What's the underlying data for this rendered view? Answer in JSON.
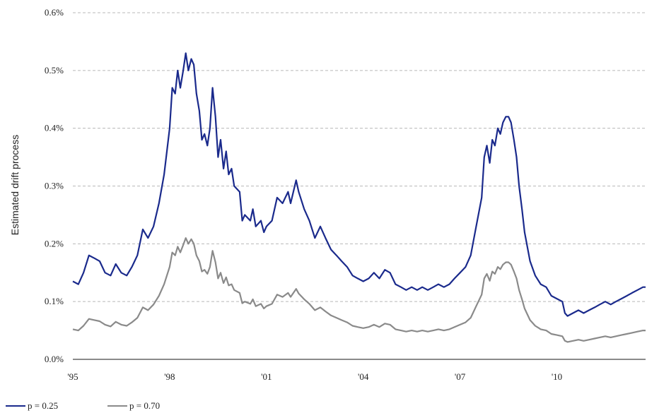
{
  "chart_data": {
    "type": "line",
    "title": "",
    "ylabel": "Estimated drift process",
    "xlabel": "",
    "xlim": [
      1995.0,
      2012.75
    ],
    "ylim": [
      0,
      0.6
    ],
    "y_unit": "%",
    "grid": true,
    "legend_position": "bottom-left",
    "x_ticks": [
      {
        "value": 1995,
        "label": "'95"
      },
      {
        "value": 1998,
        "label": "'98"
      },
      {
        "value": 2001,
        "label": "'01"
      },
      {
        "value": 2004,
        "label": "'04"
      },
      {
        "value": 2007,
        "label": "'07"
      },
      {
        "value": 2010,
        "label": "'10"
      }
    ],
    "y_ticks": [
      {
        "value": 0.0,
        "label": "0.0%"
      },
      {
        "value": 0.1,
        "label": "0.1%"
      },
      {
        "value": 0.2,
        "label": "0.2%"
      },
      {
        "value": 0.3,
        "label": "0.3%"
      },
      {
        "value": 0.4,
        "label": "0.4%"
      },
      {
        "value": 0.5,
        "label": "0.5%"
      },
      {
        "value": 0.6,
        "label": "0.6%"
      }
    ],
    "series": [
      {
        "name": "p = 0.25",
        "color": "#1a2a8c",
        "points": [
          [
            1995.0,
            0.135
          ],
          [
            1995.17,
            0.13
          ],
          [
            1995.33,
            0.15
          ],
          [
            1995.5,
            0.18
          ],
          [
            1995.67,
            0.175
          ],
          [
            1995.83,
            0.17
          ],
          [
            1996.0,
            0.15
          ],
          [
            1996.17,
            0.145
          ],
          [
            1996.33,
            0.165
          ],
          [
            1996.5,
            0.15
          ],
          [
            1996.67,
            0.145
          ],
          [
            1996.83,
            0.16
          ],
          [
            1997.0,
            0.18
          ],
          [
            1997.17,
            0.225
          ],
          [
            1997.33,
            0.21
          ],
          [
            1997.5,
            0.23
          ],
          [
            1997.67,
            0.27
          ],
          [
            1997.83,
            0.32
          ],
          [
            1998.0,
            0.4
          ],
          [
            1998.08,
            0.47
          ],
          [
            1998.17,
            0.46
          ],
          [
            1998.25,
            0.5
          ],
          [
            1998.33,
            0.47
          ],
          [
            1998.42,
            0.5
          ],
          [
            1998.5,
            0.53
          ],
          [
            1998.58,
            0.5
          ],
          [
            1998.67,
            0.52
          ],
          [
            1998.75,
            0.51
          ],
          [
            1998.83,
            0.46
          ],
          [
            1998.92,
            0.43
          ],
          [
            1999.0,
            0.38
          ],
          [
            1999.08,
            0.39
          ],
          [
            1999.17,
            0.37
          ],
          [
            1999.25,
            0.4
          ],
          [
            1999.33,
            0.47
          ],
          [
            1999.42,
            0.42
          ],
          [
            1999.5,
            0.35
          ],
          [
            1999.58,
            0.38
          ],
          [
            1999.67,
            0.33
          ],
          [
            1999.75,
            0.36
          ],
          [
            1999.83,
            0.32
          ],
          [
            1999.92,
            0.33
          ],
          [
            2000.0,
            0.3
          ],
          [
            2000.17,
            0.29
          ],
          [
            2000.25,
            0.24
          ],
          [
            2000.33,
            0.25
          ],
          [
            2000.5,
            0.24
          ],
          [
            2000.58,
            0.26
          ],
          [
            2000.67,
            0.23
          ],
          [
            2000.83,
            0.24
          ],
          [
            2000.92,
            0.22
          ],
          [
            2001.0,
            0.23
          ],
          [
            2001.17,
            0.24
          ],
          [
            2001.33,
            0.28
          ],
          [
            2001.5,
            0.27
          ],
          [
            2001.67,
            0.29
          ],
          [
            2001.75,
            0.27
          ],
          [
            2001.92,
            0.31
          ],
          [
            2002.0,
            0.29
          ],
          [
            2002.17,
            0.26
          ],
          [
            2002.33,
            0.24
          ],
          [
            2002.5,
            0.21
          ],
          [
            2002.67,
            0.23
          ],
          [
            2002.83,
            0.21
          ],
          [
            2003.0,
            0.19
          ],
          [
            2003.17,
            0.18
          ],
          [
            2003.33,
            0.17
          ],
          [
            2003.5,
            0.16
          ],
          [
            2003.67,
            0.145
          ],
          [
            2003.83,
            0.14
          ],
          [
            2004.0,
            0.135
          ],
          [
            2004.17,
            0.14
          ],
          [
            2004.33,
            0.15
          ],
          [
            2004.5,
            0.14
          ],
          [
            2004.67,
            0.155
          ],
          [
            2004.83,
            0.15
          ],
          [
            2005.0,
            0.13
          ],
          [
            2005.17,
            0.125
          ],
          [
            2005.33,
            0.12
          ],
          [
            2005.5,
            0.125
          ],
          [
            2005.67,
            0.12
          ],
          [
            2005.83,
            0.125
          ],
          [
            2006.0,
            0.12
          ],
          [
            2006.17,
            0.125
          ],
          [
            2006.33,
            0.13
          ],
          [
            2006.5,
            0.125
          ],
          [
            2006.67,
            0.13
          ],
          [
            2006.83,
            0.14
          ],
          [
            2007.0,
            0.15
          ],
          [
            2007.17,
            0.16
          ],
          [
            2007.33,
            0.18
          ],
          [
            2007.5,
            0.23
          ],
          [
            2007.67,
            0.28
          ],
          [
            2007.75,
            0.35
          ],
          [
            2007.83,
            0.37
          ],
          [
            2007.92,
            0.34
          ],
          [
            2008.0,
            0.38
          ],
          [
            2008.08,
            0.37
          ],
          [
            2008.17,
            0.4
          ],
          [
            2008.25,
            0.39
          ],
          [
            2008.33,
            0.41
          ],
          [
            2008.42,
            0.42
          ],
          [
            2008.5,
            0.42
          ],
          [
            2008.58,
            0.41
          ],
          [
            2008.67,
            0.38
          ],
          [
            2008.75,
            0.35
          ],
          [
            2008.83,
            0.3
          ],
          [
            2008.92,
            0.26
          ],
          [
            2009.0,
            0.22
          ],
          [
            2009.17,
            0.17
          ],
          [
            2009.33,
            0.145
          ],
          [
            2009.5,
            0.13
          ],
          [
            2009.67,
            0.125
          ],
          [
            2009.83,
            0.11
          ],
          [
            2010.0,
            0.105
          ],
          [
            2010.17,
            0.1
          ],
          [
            2010.25,
            0.08
          ],
          [
            2010.33,
            0.075
          ],
          [
            2010.5,
            0.08
          ],
          [
            2010.67,
            0.085
          ],
          [
            2010.83,
            0.08
          ],
          [
            2011.0,
            0.085
          ],
          [
            2011.17,
            0.09
          ],
          [
            2011.33,
            0.095
          ],
          [
            2011.5,
            0.1
          ],
          [
            2011.67,
            0.095
          ],
          [
            2011.83,
            0.1
          ],
          [
            2012.0,
            0.105
          ],
          [
            2012.17,
            0.11
          ],
          [
            2012.33,
            0.115
          ],
          [
            2012.5,
            0.12
          ],
          [
            2012.67,
            0.125
          ],
          [
            2012.75,
            0.125
          ]
        ]
      },
      {
        "name": "p = 0.70",
        "color": "#8a8a8a",
        "points": [
          [
            1995.0,
            0.052
          ],
          [
            1995.17,
            0.05
          ],
          [
            1995.33,
            0.058
          ],
          [
            1995.5,
            0.07
          ],
          [
            1995.67,
            0.068
          ],
          [
            1995.83,
            0.066
          ],
          [
            1996.0,
            0.06
          ],
          [
            1996.17,
            0.057
          ],
          [
            1996.33,
            0.065
          ],
          [
            1996.5,
            0.06
          ],
          [
            1996.67,
            0.058
          ],
          [
            1996.83,
            0.064
          ],
          [
            1997.0,
            0.072
          ],
          [
            1997.17,
            0.09
          ],
          [
            1997.33,
            0.085
          ],
          [
            1997.5,
            0.095
          ],
          [
            1997.67,
            0.11
          ],
          [
            1997.83,
            0.13
          ],
          [
            1998.0,
            0.16
          ],
          [
            1998.08,
            0.185
          ],
          [
            1998.17,
            0.18
          ],
          [
            1998.25,
            0.195
          ],
          [
            1998.33,
            0.185
          ],
          [
            1998.42,
            0.198
          ],
          [
            1998.5,
            0.21
          ],
          [
            1998.58,
            0.2
          ],
          [
            1998.67,
            0.208
          ],
          [
            1998.75,
            0.2
          ],
          [
            1998.83,
            0.18
          ],
          [
            1998.92,
            0.17
          ],
          [
            1999.0,
            0.152
          ],
          [
            1999.08,
            0.155
          ],
          [
            1999.17,
            0.148
          ],
          [
            1999.25,
            0.16
          ],
          [
            1999.33,
            0.188
          ],
          [
            1999.42,
            0.168
          ],
          [
            1999.5,
            0.14
          ],
          [
            1999.58,
            0.15
          ],
          [
            1999.67,
            0.132
          ],
          [
            1999.75,
            0.142
          ],
          [
            1999.83,
            0.128
          ],
          [
            1999.92,
            0.13
          ],
          [
            2000.0,
            0.12
          ],
          [
            2000.17,
            0.115
          ],
          [
            2000.25,
            0.097
          ],
          [
            2000.33,
            0.1
          ],
          [
            2000.5,
            0.096
          ],
          [
            2000.58,
            0.104
          ],
          [
            2000.67,
            0.092
          ],
          [
            2000.83,
            0.096
          ],
          [
            2000.92,
            0.088
          ],
          [
            2001.0,
            0.092
          ],
          [
            2001.17,
            0.096
          ],
          [
            2001.33,
            0.112
          ],
          [
            2001.5,
            0.108
          ],
          [
            2001.67,
            0.115
          ],
          [
            2001.75,
            0.108
          ],
          [
            2001.92,
            0.122
          ],
          [
            2002.0,
            0.114
          ],
          [
            2002.17,
            0.104
          ],
          [
            2002.33,
            0.096
          ],
          [
            2002.5,
            0.085
          ],
          [
            2002.67,
            0.09
          ],
          [
            2002.83,
            0.083
          ],
          [
            2003.0,
            0.076
          ],
          [
            2003.17,
            0.072
          ],
          [
            2003.33,
            0.068
          ],
          [
            2003.5,
            0.064
          ],
          [
            2003.67,
            0.058
          ],
          [
            2003.83,
            0.056
          ],
          [
            2004.0,
            0.054
          ],
          [
            2004.17,
            0.056
          ],
          [
            2004.33,
            0.06
          ],
          [
            2004.5,
            0.056
          ],
          [
            2004.67,
            0.062
          ],
          [
            2004.83,
            0.06
          ],
          [
            2005.0,
            0.052
          ],
          [
            2005.17,
            0.05
          ],
          [
            2005.33,
            0.048
          ],
          [
            2005.5,
            0.05
          ],
          [
            2005.67,
            0.048
          ],
          [
            2005.83,
            0.05
          ],
          [
            2006.0,
            0.048
          ],
          [
            2006.17,
            0.05
          ],
          [
            2006.33,
            0.052
          ],
          [
            2006.5,
            0.05
          ],
          [
            2006.67,
            0.052
          ],
          [
            2006.83,
            0.056
          ],
          [
            2007.0,
            0.06
          ],
          [
            2007.17,
            0.064
          ],
          [
            2007.33,
            0.072
          ],
          [
            2007.5,
            0.092
          ],
          [
            2007.67,
            0.112
          ],
          [
            2007.75,
            0.14
          ],
          [
            2007.83,
            0.148
          ],
          [
            2007.92,
            0.136
          ],
          [
            2008.0,
            0.152
          ],
          [
            2008.08,
            0.148
          ],
          [
            2008.17,
            0.16
          ],
          [
            2008.25,
            0.156
          ],
          [
            2008.33,
            0.164
          ],
          [
            2008.42,
            0.168
          ],
          [
            2008.5,
            0.168
          ],
          [
            2008.58,
            0.164
          ],
          [
            2008.67,
            0.152
          ],
          [
            2008.75,
            0.14
          ],
          [
            2008.83,
            0.12
          ],
          [
            2008.92,
            0.104
          ],
          [
            2009.0,
            0.088
          ],
          [
            2009.17,
            0.068
          ],
          [
            2009.33,
            0.058
          ],
          [
            2009.5,
            0.052
          ],
          [
            2009.67,
            0.05
          ],
          [
            2009.83,
            0.044
          ],
          [
            2010.0,
            0.042
          ],
          [
            2010.17,
            0.04
          ],
          [
            2010.25,
            0.032
          ],
          [
            2010.33,
            0.03
          ],
          [
            2010.5,
            0.032
          ],
          [
            2010.67,
            0.034
          ],
          [
            2010.83,
            0.032
          ],
          [
            2011.0,
            0.034
          ],
          [
            2011.17,
            0.036
          ],
          [
            2011.33,
            0.038
          ],
          [
            2011.5,
            0.04
          ],
          [
            2011.67,
            0.038
          ],
          [
            2011.83,
            0.04
          ],
          [
            2012.0,
            0.042
          ],
          [
            2012.17,
            0.044
          ],
          [
            2012.33,
            0.046
          ],
          [
            2012.5,
            0.048
          ],
          [
            2012.67,
            0.05
          ],
          [
            2012.75,
            0.05
          ]
        ]
      }
    ]
  }
}
